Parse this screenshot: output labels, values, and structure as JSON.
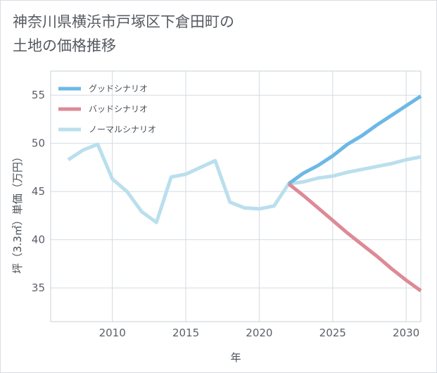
{
  "chart_data": {
    "type": "line",
    "title": "神奈川県横浜市戸塚区下倉田町の\n土地の価格推移",
    "xlabel": "年",
    "ylabel": "坪（3.3㎡）単価（万円）",
    "xlim": [
      2005.8,
      2031
    ],
    "ylim": [
      31.5,
      57.5
    ],
    "xticks": [
      2010,
      2015,
      2020,
      2025,
      2030
    ],
    "yticks": [
      35,
      40,
      45,
      50,
      55
    ],
    "legend_position": "top-left",
    "series": [
      {
        "name": "グッドシナリオ",
        "color": "#6cb8e6",
        "x": [
          2022,
          2023,
          2024,
          2025,
          2026,
          2027,
          2028,
          2029,
          2030,
          2031
        ],
        "values": [
          45.8,
          46.9,
          47.7,
          48.7,
          49.9,
          50.8,
          51.9,
          52.9,
          53.9,
          54.9
        ]
      },
      {
        "name": "バッドシナリオ",
        "color": "#dd8a96",
        "x": [
          2022,
          2023,
          2024,
          2025,
          2026,
          2027,
          2028,
          2029,
          2030,
          2031
        ],
        "values": [
          45.8,
          44.6,
          43.3,
          42.0,
          40.7,
          39.5,
          38.3,
          37.0,
          35.8,
          34.7
        ]
      },
      {
        "name": "ノーマルシナリオ",
        "color": "#badfed",
        "x": [
          2007,
          2008,
          2009,
          2010,
          2011,
          2012,
          2013,
          2014,
          2015,
          2016,
          2017,
          2018,
          2019,
          2020,
          2021,
          2022,
          2023,
          2024,
          2025,
          2026,
          2027,
          2028,
          2029,
          2030,
          2031
        ],
        "values": [
          48.3,
          49.3,
          49.9,
          46.3,
          45.0,
          42.9,
          41.8,
          46.5,
          46.8,
          47.5,
          48.2,
          43.9,
          43.3,
          43.2,
          43.5,
          45.8,
          46.0,
          46.4,
          46.6,
          47.0,
          47.3,
          47.6,
          47.9,
          48.3,
          48.6
        ]
      }
    ]
  }
}
